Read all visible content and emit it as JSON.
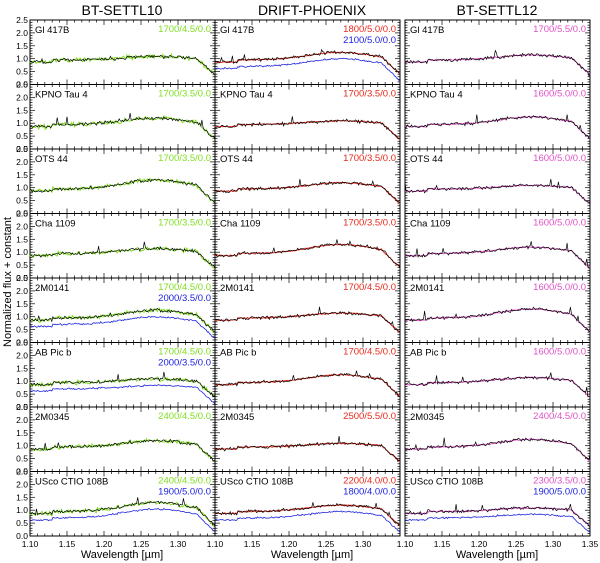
{
  "figure": {
    "column_titles": [
      "BT-SETTL10",
      "DRIFT-PHOENIX",
      "BT-SETTL12"
    ],
    "ylabel": "Normalized flux + constant",
    "xlabel": "Wavelength [µm]"
  },
  "colors": {
    "observed": "#000000",
    "model_settl10": "#7fe021",
    "model_drift": "#e8291c",
    "model_settl12": "#e052c8",
    "model_second": "#1c22e0"
  },
  "chart_data": {
    "type": "line",
    "layout": "grid 8 rows x 3 columns of spectra panels",
    "xlim": [
      1.1,
      1.35
    ],
    "ylim": [
      0.0,
      2.5
    ],
    "x_ticks": [
      "1.10",
      "1.15",
      "1.20",
      "1.25",
      "1.30",
      "1.35"
    ],
    "y_ticks": [
      "0.0",
      "0.5",
      "1.0",
      "1.5",
      "2.0",
      "2.5"
    ],
    "columns": [
      {
        "title": "BT-SETTL10",
        "model_color": "#7fe021"
      },
      {
        "title": "DRIFT-PHOENIX",
        "model_color": "#e8291c"
      },
      {
        "title": "BT-SETTL12",
        "model_color": "#e052c8"
      }
    ],
    "rows": [
      {
        "object": "Gl 417B",
        "fits": [
          [
            {
              "label": "1700/4.5/0.0",
              "color": "#7fe021"
            }
          ],
          [
            {
              "label": "1800/5.0/0.0",
              "color": "#e8291c"
            },
            {
              "label": "2100/5.0/0.0",
              "color": "#1c22e0"
            }
          ],
          [
            {
              "label": "1700/5.5/0.0",
              "color": "#e052c8"
            }
          ]
        ]
      },
      {
        "object": "KPNO Tau 4",
        "fits": [
          [
            {
              "label": "1700/3.5/0.0",
              "color": "#7fe021"
            }
          ],
          [
            {
              "label": "1700/3.5/0.0",
              "color": "#e8291c"
            }
          ],
          [
            {
              "label": "1600/5.0/0.0",
              "color": "#e052c8"
            }
          ]
        ]
      },
      {
        "object": "OTS 44",
        "fits": [
          [
            {
              "label": "1700/3.5/0.0",
              "color": "#7fe021"
            }
          ],
          [
            {
              "label": "1700/3.5/0.0",
              "color": "#e8291c"
            }
          ],
          [
            {
              "label": "1600/5.0/0.0",
              "color": "#e052c8"
            }
          ]
        ]
      },
      {
        "object": "Cha 1109",
        "fits": [
          [
            {
              "label": "1700/3.5/0.0",
              "color": "#7fe021"
            }
          ],
          [
            {
              "label": "1700/3.5/0.0",
              "color": "#e8291c"
            }
          ],
          [
            {
              "label": "1600/5.0/0.0",
              "color": "#e052c8"
            }
          ]
        ]
      },
      {
        "object": "2M0141",
        "fits": [
          [
            {
              "label": "1700/4.5/0.0",
              "color": "#7fe021"
            },
            {
              "label": "2000/3.5/0.0",
              "color": "#1c22e0"
            }
          ],
          [
            {
              "label": "1700/4.5/0.0",
              "color": "#e8291c"
            }
          ],
          [
            {
              "label": "1600/5.0/0.0",
              "color": "#e052c8"
            }
          ]
        ]
      },
      {
        "object": "AB Pic b",
        "fits": [
          [
            {
              "label": "1700/4.5/0.0",
              "color": "#7fe021"
            },
            {
              "label": "2000/3.5/0.0",
              "color": "#1c22e0"
            }
          ],
          [
            {
              "label": "1700/4.5/0.0",
              "color": "#e8291c"
            }
          ],
          [
            {
              "label": "1600/5.0/0.0",
              "color": "#e052c8"
            }
          ]
        ]
      },
      {
        "object": "2M0345",
        "fits": [
          [
            {
              "label": "2400/4.5/0.0",
              "color": "#7fe021"
            }
          ],
          [
            {
              "label": "2500/5.5/0.0",
              "color": "#e8291c"
            }
          ],
          [
            {
              "label": "2400/4.5/0.0",
              "color": "#e052c8"
            }
          ]
        ]
      },
      {
        "object": "USco CTIO 108B",
        "fits": [
          [
            {
              "label": "2400/4.5/0.0",
              "color": "#7fe021"
            },
            {
              "label": "1900/5.0/0.0",
              "color": "#1c22e0"
            }
          ],
          [
            {
              "label": "2200/4.0/0.0",
              "color": "#e8291c"
            },
            {
              "label": "1800/4.0/0.0",
              "color": "#1c22e0"
            }
          ],
          [
            {
              "label": "2300/3.5/0.0",
              "color": "#e052c8"
            },
            {
              "label": "1900/5.0/0.0",
              "color": "#1c22e0"
            }
          ]
        ]
      }
    ]
  }
}
